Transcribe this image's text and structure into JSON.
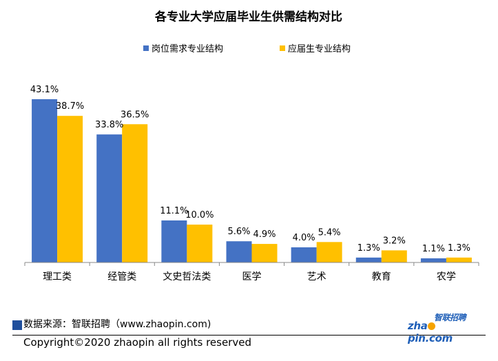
{
  "chart_data": {
    "type": "bar",
    "title": "各专业大学应届毕业生供需结构对比",
    "categories": [
      "理工类",
      "经管类",
      "文史哲法类",
      "医学",
      "艺术",
      "教育",
      "农学"
    ],
    "series": [
      {
        "name": "岗位需求专业结构",
        "color": "#4472c4",
        "values": [
          43.1,
          33.8,
          11.1,
          5.6,
          4.0,
          1.3,
          1.1
        ],
        "labels": [
          "43.1%",
          "33.8%",
          "11.1%",
          "5.6%",
          "4.0%",
          "1.3%",
          "1.1%"
        ]
      },
      {
        "name": "应届生专业结构",
        "color": "#ffc000",
        "values": [
          38.7,
          36.5,
          10.0,
          4.9,
          5.4,
          3.2,
          1.3
        ],
        "labels": [
          "38.7%",
          "36.5%",
          "10.0%",
          "4.9%",
          "5.4%",
          "3.2%",
          "1.3%"
        ]
      }
    ],
    "ylim": [
      0,
      43.1
    ],
    "legend_position": "top",
    "grid": false
  },
  "footer": {
    "source": "数据来源：智联招聘（www.zhaopin.com)",
    "copyright": "Copyright©2020 zhaopin all rights reserved",
    "source_marker_color": "#1f4e9c"
  },
  "logo": {
    "cn": "智联招聘",
    "en_left": "zha",
    "en_right": "pin.com"
  }
}
